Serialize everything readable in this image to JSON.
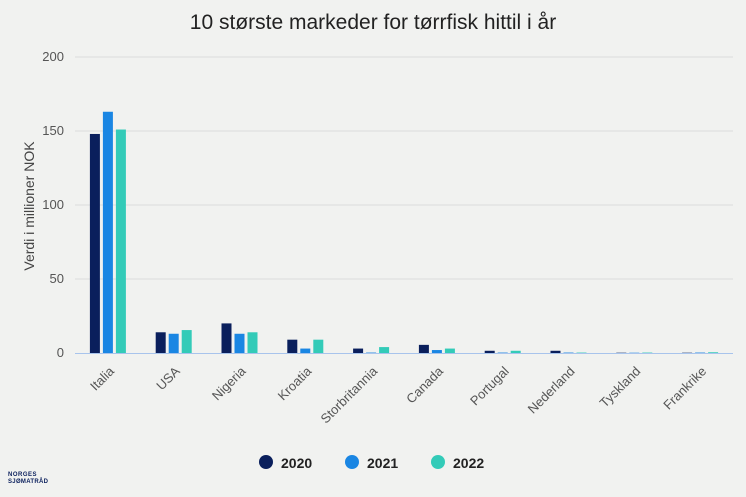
{
  "chart_data": {
    "type": "bar",
    "title": "10 største markeder for tørrfisk hittil i år",
    "ylabel": "Verdi i millioner NOK",
    "xlabel": "",
    "ylim": [
      0,
      200
    ],
    "yticks": [
      0,
      50,
      100,
      150,
      200
    ],
    "grid": true,
    "legend_position": "bottom",
    "categories": [
      "Italia",
      "USA",
      "Nigeria",
      "Kroatia",
      "Storbritannia",
      "Canada",
      "Portugal",
      "Nederland",
      "Tyskland",
      "Frankrike"
    ],
    "series": [
      {
        "name": "2020",
        "color": "#0a1f5c",
        "values": [
          148,
          14,
          20,
          9,
          3,
          5.5,
          1.5,
          1.5,
          0.2,
          0.2
        ]
      },
      {
        "name": "2021",
        "color": "#1a86e3",
        "values": [
          163,
          13,
          13,
          3,
          0.3,
          2,
          0.3,
          0.3,
          0.2,
          0.3
        ]
      },
      {
        "name": "2022",
        "color": "#33cbb8",
        "values": [
          151,
          15.5,
          14,
          9,
          4,
          3,
          1.5,
          0.3,
          0.3,
          0.5
        ]
      }
    ]
  },
  "brand": {
    "line1": "NORGES",
    "line2": "SJØMATRÅD"
  }
}
